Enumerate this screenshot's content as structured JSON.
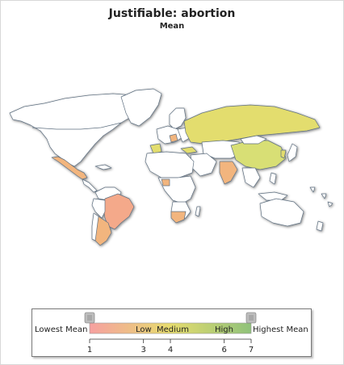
{
  "title": "Justifiable: abortion",
  "subtitle": "Mean",
  "legend": {
    "low_end_label": "Lowest Mean",
    "high_end_label": "Highest Mean",
    "bands": [
      "Low",
      "Medium",
      "High"
    ],
    "ticks": [
      "1",
      "3",
      "4",
      "6",
      "7"
    ],
    "scale_min": 1,
    "scale_max": 7,
    "selected_min": 1,
    "selected_max": 7,
    "colors": {
      "low": "#f6a0a0",
      "medium": "#e6dc6e",
      "high": "#8fc27a"
    }
  },
  "map": {
    "ocean_color": "#ffffff",
    "no_data_color": "#ffffff",
    "border_color": "#607080"
  }
}
